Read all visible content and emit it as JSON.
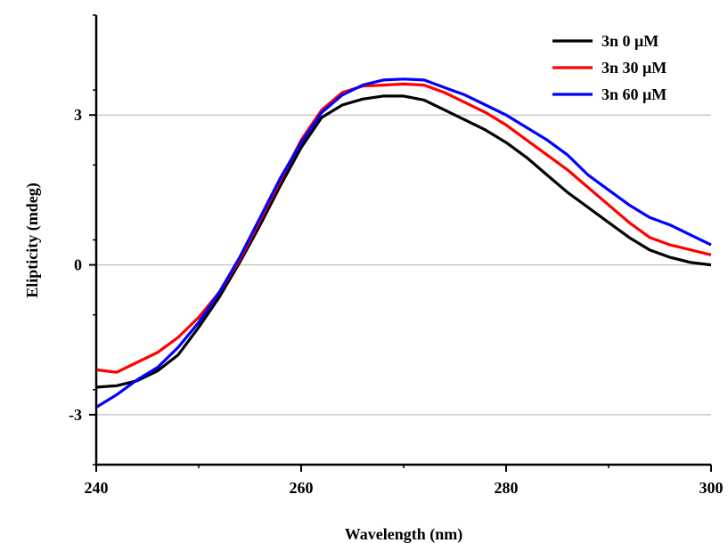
{
  "chart_data": {
    "type": "line",
    "title": "",
    "xlabel": "Wavelength (nm)",
    "ylabel": "Elipticity (mdeg)",
    "xlim": [
      240,
      300
    ],
    "ylim": [
      -4,
      5
    ],
    "x_ticks": [
      240,
      260,
      280,
      300
    ],
    "x_tick_labels": [
      "240",
      "260",
      "280",
      "300"
    ],
    "y_ticks": [
      -3,
      0,
      3
    ],
    "y_tick_labels": [
      "-3",
      "0",
      "3"
    ],
    "grid": "horizontal at y ticks",
    "legend_position": "top-right",
    "series": [
      {
        "name": "3n 0 μM",
        "color": "#000000",
        "x": [
          240,
          242,
          244,
          246,
          248,
          250,
          252,
          254,
          256,
          258,
          260,
          262,
          264,
          266,
          268,
          270,
          272,
          274,
          276,
          278,
          280,
          282,
          284,
          286,
          288,
          290,
          292,
          294,
          296,
          298,
          300
        ],
        "y": [
          -2.45,
          -2.42,
          -2.32,
          -2.12,
          -1.8,
          -1.25,
          -0.65,
          0.05,
          0.8,
          1.6,
          2.35,
          2.95,
          3.2,
          3.32,
          3.38,
          3.38,
          3.3,
          3.1,
          2.9,
          2.7,
          2.45,
          2.15,
          1.8,
          1.45,
          1.15,
          0.85,
          0.55,
          0.3,
          0.15,
          0.05,
          0.0
        ]
      },
      {
        "name": "3n 30 μM",
        "color": "#ff0000",
        "x": [
          240,
          242,
          244,
          246,
          248,
          250,
          252,
          254,
          256,
          258,
          260,
          262,
          264,
          266,
          268,
          270,
          272,
          274,
          276,
          278,
          280,
          282,
          284,
          286,
          288,
          290,
          292,
          294,
          296,
          298,
          300
        ],
        "y": [
          -2.1,
          -2.15,
          -1.95,
          -1.75,
          -1.45,
          -1.05,
          -0.55,
          0.1,
          0.9,
          1.7,
          2.5,
          3.1,
          3.45,
          3.58,
          3.6,
          3.62,
          3.6,
          3.45,
          3.25,
          3.05,
          2.8,
          2.5,
          2.2,
          1.9,
          1.55,
          1.2,
          0.85,
          0.55,
          0.4,
          0.3,
          0.2
        ]
      },
      {
        "name": "3n 60 μM",
        "color": "#0000ff",
        "x": [
          240,
          242,
          244,
          246,
          248,
          250,
          252,
          254,
          256,
          258,
          260,
          262,
          264,
          266,
          268,
          270,
          272,
          274,
          276,
          278,
          280,
          282,
          284,
          286,
          288,
          290,
          292,
          294,
          296,
          298,
          300
        ],
        "y": [
          -2.85,
          -2.6,
          -2.3,
          -2.05,
          -1.65,
          -1.15,
          -0.55,
          0.15,
          0.95,
          1.75,
          2.45,
          3.05,
          3.4,
          3.6,
          3.7,
          3.72,
          3.7,
          3.55,
          3.4,
          3.2,
          3.0,
          2.75,
          2.5,
          2.2,
          1.8,
          1.5,
          1.2,
          0.95,
          0.8,
          0.6,
          0.4
        ]
      }
    ]
  }
}
